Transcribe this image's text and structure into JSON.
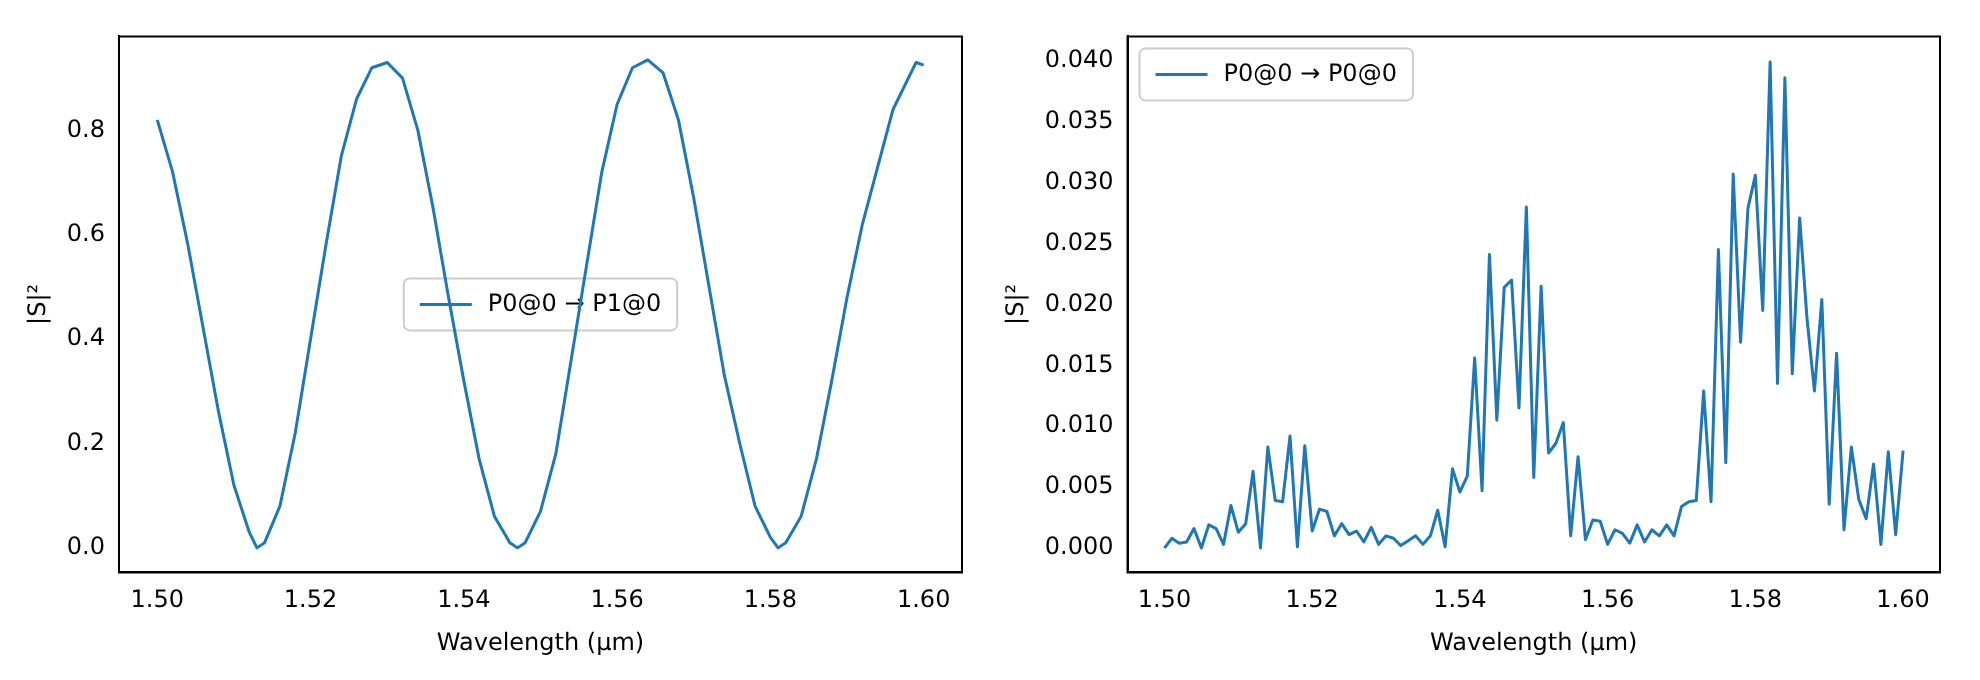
{
  "chart_data": [
    {
      "type": "line",
      "xlabel": "Wavelength (µm)",
      "ylabel": "|S|²",
      "legend": "center",
      "grid": false,
      "marker": "none",
      "xlim": [
        1.495,
        1.605
      ],
      "ylim": [
        -0.047,
        0.98
      ],
      "xticks": [
        {
          "value": 1.5,
          "label": "1.50"
        },
        {
          "value": 1.52,
          "label": "1.52"
        },
        {
          "value": 1.54,
          "label": "1.54"
        },
        {
          "value": 1.56,
          "label": "1.56"
        },
        {
          "value": 1.58,
          "label": "1.58"
        },
        {
          "value": 1.6,
          "label": "1.60"
        }
      ],
      "yticks": [
        {
          "value": 0,
          "label": "0.0"
        },
        {
          "value": 0.2,
          "label": "0.2"
        },
        {
          "value": 0.4,
          "label": "0.4"
        },
        {
          "value": 0.6,
          "label": "0.6"
        },
        {
          "value": 0.8,
          "label": "0.8"
        }
      ],
      "x": [
        1.5,
        1.502,
        1.504,
        1.506,
        1.508,
        1.51,
        1.512,
        1.513,
        1.514,
        1.516,
        1.518,
        1.52,
        1.522,
        1.524,
        1.526,
        1.528,
        1.53,
        1.532,
        1.534,
        1.536,
        1.538,
        1.54,
        1.542,
        1.544,
        1.546,
        1.547,
        1.548,
        1.55,
        1.552,
        1.554,
        1.556,
        1.558,
        1.56,
        1.562,
        1.564,
        1.566,
        1.568,
        1.57,
        1.572,
        1.574,
        1.576,
        1.578,
        1.58,
        1.581,
        1.582,
        1.584,
        1.586,
        1.588,
        1.59,
        1.592,
        1.594,
        1.596,
        1.598,
        1.599,
        1.6
      ],
      "series": [
        {
          "name": "P0@0 → P1@0",
          "color": "#1f77b4",
          "values": [
            0.82,
            0.72,
            0.58,
            0.42,
            0.26,
            0.12,
            0.03,
            0.0,
            0.01,
            0.08,
            0.22,
            0.4,
            0.58,
            0.75,
            0.86,
            0.92,
            0.93,
            0.9,
            0.8,
            0.65,
            0.48,
            0.32,
            0.17,
            0.06,
            0.01,
            0.0,
            0.01,
            0.07,
            0.18,
            0.36,
            0.54,
            0.72,
            0.85,
            0.92,
            0.935,
            0.91,
            0.82,
            0.67,
            0.5,
            0.33,
            0.2,
            0.08,
            0.02,
            0.0,
            0.01,
            0.06,
            0.17,
            0.32,
            0.48,
            0.62,
            0.73,
            0.84,
            0.9,
            0.93,
            0.925
          ]
        }
      ]
    },
    {
      "type": "line",
      "xlabel": "Wavelength (µm)",
      "ylabel": "|S|²",
      "legend": "top left",
      "grid": false,
      "marker": "none",
      "xlim": [
        1.495,
        1.605
      ],
      "ylim": [
        -0.002,
        0.042
      ],
      "xticks": [
        {
          "value": 1.5,
          "label": "1.50"
        },
        {
          "value": 1.52,
          "label": "1.52"
        },
        {
          "value": 1.54,
          "label": "1.54"
        },
        {
          "value": 1.56,
          "label": "1.56"
        },
        {
          "value": 1.58,
          "label": "1.58"
        },
        {
          "value": 1.6,
          "label": "1.60"
        }
      ],
      "yticks": [
        {
          "value": 0,
          "label": "0.000"
        },
        {
          "value": 0.005,
          "label": "0.005"
        },
        {
          "value": 0.01,
          "label": "0.010"
        },
        {
          "value": 0.015,
          "label": "0.015"
        },
        {
          "value": 0.02,
          "label": "0.020"
        },
        {
          "value": 0.025,
          "label": "0.025"
        },
        {
          "value": 0.03,
          "label": "0.030"
        },
        {
          "value": 0.035,
          "label": "0.035"
        },
        {
          "value": 0.04,
          "label": "0.040"
        }
      ],
      "x": [
        1.5,
        1.501,
        1.502,
        1.503,
        1.504,
        1.505,
        1.506,
        1.507,
        1.508,
        1.509,
        1.51,
        1.511,
        1.512,
        1.513,
        1.514,
        1.515,
        1.516,
        1.517,
        1.518,
        1.519,
        1.52,
        1.521,
        1.522,
        1.523,
        1.524,
        1.525,
        1.526,
        1.527,
        1.528,
        1.529,
        1.53,
        1.531,
        1.532,
        1.533,
        1.534,
        1.535,
        1.536,
        1.537,
        1.538,
        1.539,
        1.54,
        1.541,
        1.542,
        1.543,
        1.544,
        1.545,
        1.546,
        1.547,
        1.548,
        1.549,
        1.55,
        1.551,
        1.552,
        1.553,
        1.554,
        1.555,
        1.556,
        1.557,
        1.558,
        1.559,
        1.56,
        1.561,
        1.562,
        1.563,
        1.564,
        1.565,
        1.566,
        1.567,
        1.568,
        1.569,
        1.57,
        1.571,
        1.572,
        1.573,
        1.574,
        1.575,
        1.576,
        1.577,
        1.578,
        1.579,
        1.58,
        1.581,
        1.582,
        1.583,
        1.584,
        1.585,
        1.586,
        1.587,
        1.588,
        1.589,
        1.59,
        1.591,
        1.592,
        1.593,
        1.594,
        1.595,
        1.596,
        1.597,
        1.598,
        1.599,
        1.6
      ],
      "series": [
        {
          "name": "P0@0 → P0@0",
          "color": "#1f77b4",
          "values": [
            0.0,
            0.0008,
            0.0004,
            0.0005,
            0.0016,
            0.0,
            0.0019,
            0.0016,
            0.0003,
            0.0035,
            0.0013,
            0.002,
            0.0063,
            0.0,
            0.0083,
            0.0039,
            0.0038,
            0.0092,
            0.0001,
            0.0084,
            0.0014,
            0.0032,
            0.003,
            0.001,
            0.002,
            0.0011,
            0.0014,
            0.0005,
            0.0017,
            0.0003,
            0.001,
            0.0008,
            0.0002,
            0.0006,
            0.001,
            0.0003,
            0.001,
            0.0031,
            0.0001,
            0.0065,
            0.0046,
            0.0059,
            0.0156,
            0.0047,
            0.0241,
            0.0105,
            0.0214,
            0.022,
            0.0115,
            0.028,
            0.0058,
            0.0215,
            0.0078,
            0.0086,
            0.0103,
            0.001,
            0.0075,
            0.0007,
            0.0023,
            0.0022,
            0.0003,
            0.0015,
            0.0012,
            0.0004,
            0.0019,
            0.0005,
            0.0015,
            0.001,
            0.0019,
            0.001,
            0.0034,
            0.0038,
            0.0039,
            0.0129,
            0.0038,
            0.0245,
            0.007,
            0.0307,
            0.0169,
            0.0279,
            0.0306,
            0.0195,
            0.0399,
            0.0135,
            0.0386,
            0.0143,
            0.0271,
            0.0188,
            0.0129,
            0.0204,
            0.0036,
            0.016,
            0.0015,
            0.0083,
            0.004,
            0.0024,
            0.0069,
            0.0003,
            0.0079,
            0.0011,
            0.008
          ]
        }
      ]
    }
  ]
}
